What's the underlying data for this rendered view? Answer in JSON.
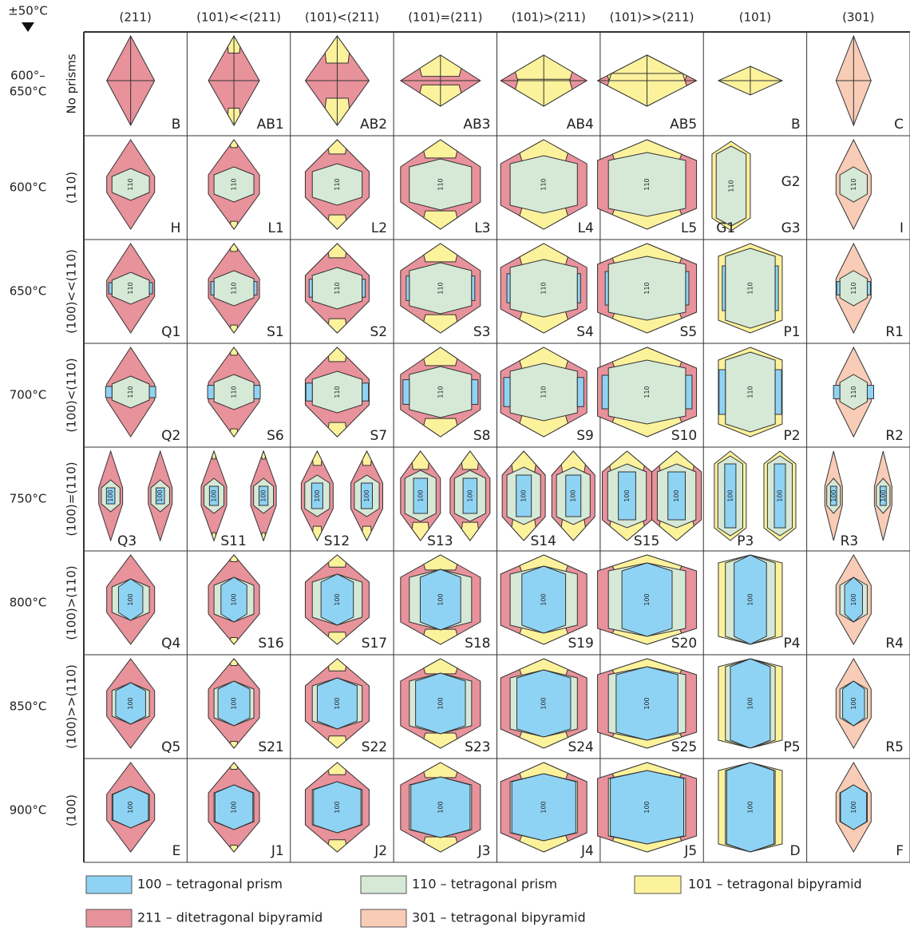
{
  "corner": "±50°C",
  "columns": [
    "(211)",
    "(101)<<(211)",
    "(101)<(211)",
    "(101)=(211)",
    "(101)>(211)",
    "(101)>>(211)",
    "(101)",
    "(301)"
  ],
  "rows": [
    {
      "temperature": [
        "600°–",
        "650°C"
      ],
      "prisms": "No prisms",
      "cells": [
        {
          "codes": [
            "B"
          ],
          "faces": []
        },
        {
          "codes": [
            "AB1"
          ],
          "faces": []
        },
        {
          "codes": [
            "AB2"
          ],
          "faces": []
        },
        {
          "codes": [
            "AB3"
          ],
          "faces": []
        },
        {
          "codes": [
            "AB4"
          ],
          "faces": []
        },
        {
          "codes": [
            "AB5"
          ],
          "faces": []
        },
        {
          "codes": [
            "B"
          ],
          "faces": []
        },
        {
          "codes": [
            "C"
          ],
          "faces": []
        }
      ]
    },
    {
      "temperature": [
        "600°C"
      ],
      "prisms": "(110)",
      "cells": [
        {
          "codes": [
            "H"
          ],
          "faces": [
            "110"
          ]
        },
        {
          "codes": [
            "L1"
          ],
          "faces": [
            "110"
          ]
        },
        {
          "codes": [
            "L2"
          ],
          "faces": [
            "110"
          ]
        },
        {
          "codes": [
            "L3"
          ],
          "faces": [
            "110"
          ]
        },
        {
          "codes": [
            "L4"
          ],
          "faces": [
            "110"
          ]
        },
        {
          "codes": [
            "L5"
          ],
          "faces": [
            "110"
          ]
        },
        {
          "codes": [
            "G1",
            "G2",
            "G3"
          ],
          "faces": [
            "110"
          ]
        },
        {
          "codes": [
            "I"
          ],
          "faces": [
            "110"
          ]
        }
      ]
    },
    {
      "temperature": [
        "650°C"
      ],
      "prisms": "(100)<<(110)",
      "cells": [
        {
          "codes": [
            "Q1"
          ],
          "faces": [
            "110"
          ]
        },
        {
          "codes": [
            "S1"
          ],
          "faces": [
            "110"
          ]
        },
        {
          "codes": [
            "S2"
          ],
          "faces": [
            "110"
          ]
        },
        {
          "codes": [
            "S3"
          ],
          "faces": [
            "110"
          ]
        },
        {
          "codes": [
            "S4"
          ],
          "faces": [
            "110"
          ]
        },
        {
          "codes": [
            "S5"
          ],
          "faces": [
            "110"
          ]
        },
        {
          "codes": [
            "P1"
          ],
          "faces": [
            "110"
          ]
        },
        {
          "codes": [
            "R1"
          ],
          "faces": [
            "110"
          ]
        }
      ]
    },
    {
      "temperature": [
        "700°C"
      ],
      "prisms": "(100)<(110)",
      "cells": [
        {
          "codes": [
            "Q2"
          ],
          "faces": [
            "110"
          ]
        },
        {
          "codes": [
            "S6"
          ],
          "faces": [
            "110"
          ]
        },
        {
          "codes": [
            "S7"
          ],
          "faces": [
            "110"
          ]
        },
        {
          "codes": [
            "S8"
          ],
          "faces": [
            "110"
          ]
        },
        {
          "codes": [
            "S9"
          ],
          "faces": [
            "110"
          ]
        },
        {
          "codes": [
            "S10"
          ],
          "faces": [
            "110"
          ]
        },
        {
          "codes": [
            "P2"
          ],
          "faces": [
            "110"
          ]
        },
        {
          "codes": [
            "R2"
          ],
          "faces": [
            "110"
          ]
        }
      ]
    },
    {
      "temperature": [
        "750°C"
      ],
      "prisms": "(100)=(110)",
      "cells": [
        {
          "codes": [
            "Q3"
          ],
          "faces": [
            "100",
            "100"
          ]
        },
        {
          "codes": [
            "S11"
          ],
          "faces": [
            "100",
            "100"
          ]
        },
        {
          "codes": [
            "S12"
          ],
          "faces": [
            "100",
            "100"
          ]
        },
        {
          "codes": [
            "S13"
          ],
          "faces": [
            "100",
            "100"
          ]
        },
        {
          "codes": [
            "S14"
          ],
          "faces": [
            "100",
            "100"
          ]
        },
        {
          "codes": [
            "S15"
          ],
          "faces": [
            "100",
            "100"
          ]
        },
        {
          "codes": [
            "P3"
          ],
          "faces": [
            "100",
            "100"
          ]
        },
        {
          "codes": [
            "R3"
          ],
          "faces": [
            "100",
            "100"
          ]
        }
      ]
    },
    {
      "temperature": [
        "800°C"
      ],
      "prisms": "(100)>(110)",
      "cells": [
        {
          "codes": [
            "Q4"
          ],
          "faces": [
            "100"
          ]
        },
        {
          "codes": [
            "S16"
          ],
          "faces": [
            "100"
          ]
        },
        {
          "codes": [
            "S17"
          ],
          "faces": [
            "100"
          ]
        },
        {
          "codes": [
            "S18"
          ],
          "faces": [
            "100"
          ]
        },
        {
          "codes": [
            "S19"
          ],
          "faces": [
            "100"
          ]
        },
        {
          "codes": [
            "S20"
          ],
          "faces": [
            "100"
          ]
        },
        {
          "codes": [
            "P4"
          ],
          "faces": [
            "100"
          ]
        },
        {
          "codes": [
            "R4"
          ],
          "faces": [
            "100"
          ]
        }
      ]
    },
    {
      "temperature": [
        "850°C"
      ],
      "prisms": "(100)>>(110)",
      "cells": [
        {
          "codes": [
            "Q5"
          ],
          "faces": [
            "100"
          ]
        },
        {
          "codes": [
            "S21"
          ],
          "faces": [
            "100"
          ]
        },
        {
          "codes": [
            "S22"
          ],
          "faces": [
            "100"
          ]
        },
        {
          "codes": [
            "S23"
          ],
          "faces": [
            "100"
          ]
        },
        {
          "codes": [
            "S24"
          ],
          "faces": [
            "100"
          ]
        },
        {
          "codes": [
            "S25"
          ],
          "faces": [
            "100"
          ]
        },
        {
          "codes": [
            "P5"
          ],
          "faces": [
            "100"
          ]
        },
        {
          "codes": [
            "R5"
          ],
          "faces": [
            "100"
          ]
        }
      ]
    },
    {
      "temperature": [
        "900°C"
      ],
      "prisms": "(100)",
      "cells": [
        {
          "codes": [
            "E"
          ],
          "faces": [
            "100"
          ]
        },
        {
          "codes": [
            "J1"
          ],
          "faces": [
            "100"
          ]
        },
        {
          "codes": [
            "J2"
          ],
          "faces": [
            "100"
          ]
        },
        {
          "codes": [
            "J3"
          ],
          "faces": [
            "100"
          ]
        },
        {
          "codes": [
            "J4"
          ],
          "faces": [
            "100"
          ]
        },
        {
          "codes": [
            "J5"
          ],
          "faces": [
            "100"
          ]
        },
        {
          "codes": [
            "D"
          ],
          "faces": [
            "100"
          ]
        },
        {
          "codes": [
            "F"
          ],
          "faces": [
            "100"
          ]
        }
      ]
    }
  ],
  "legend": [
    {
      "label": "100 – tetragonal prism",
      "color": "#8fd3f4"
    },
    {
      "label": "110 – tetragonal prism",
      "color": "#d5e9d6"
    },
    {
      "label": "101 – tetragonal bipyramid",
      "color": "#fdf29c"
    },
    {
      "label": "211 – ditetragonal bipyramid",
      "color": "#e8929b"
    },
    {
      "label": "301 – tetragonal bipyramid",
      "color": "#f8ccb6"
    }
  ]
}
